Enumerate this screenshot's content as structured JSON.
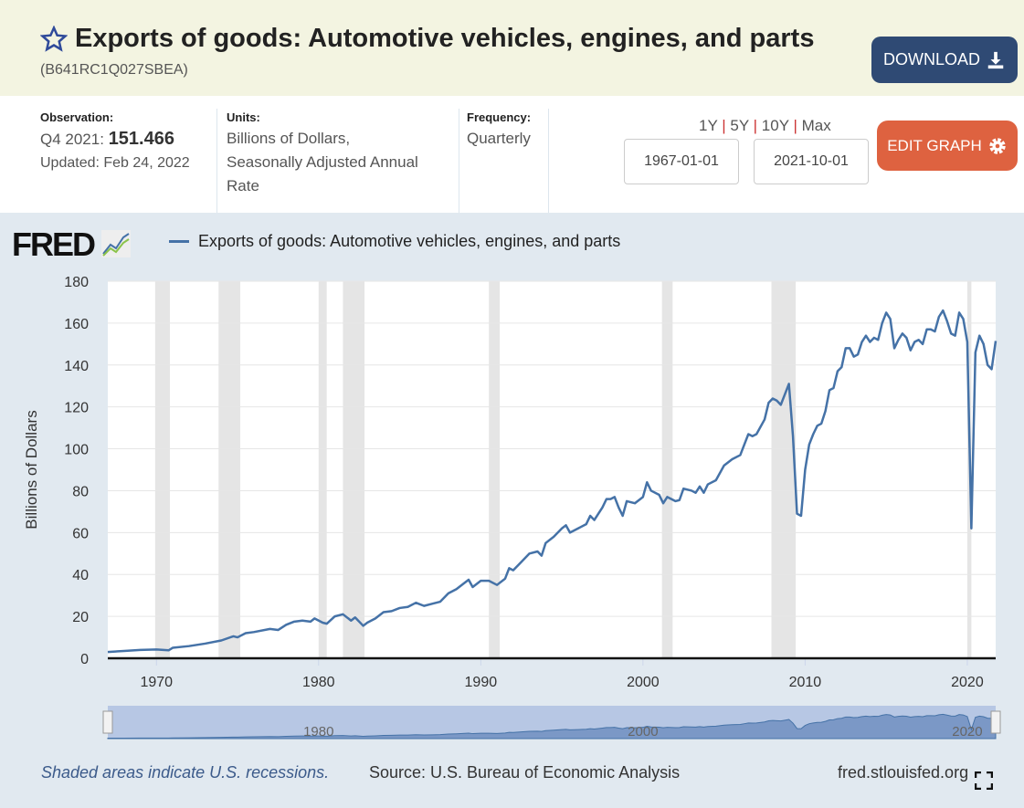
{
  "header": {
    "title": "Exports of goods: Automotive vehicles, engines, and parts",
    "series_id": "(B641RC1Q027SBEA)",
    "download_label": "DOWNLOAD",
    "star_icon": "star-outline-icon",
    "download_icon": "download-icon"
  },
  "info": {
    "observation_label": "Observation:",
    "observation_period": "Q4 2021:",
    "observation_value": "151.466",
    "updated": "Updated: Feb 24, 2022",
    "units_label": "Units:",
    "units_lines": [
      "Billions of Dollars,",
      "Seasonally Adjusted Annual",
      "Rate"
    ],
    "frequency_label": "Frequency:",
    "frequency": "Quarterly"
  },
  "range": {
    "options": [
      "1Y",
      "5Y",
      "10Y",
      "Max"
    ],
    "start": "1967-01-01",
    "end": "2021-10-01"
  },
  "edit_label": "EDIT GRAPH",
  "graph": {
    "logo": "FRED",
    "legend": "Exports of goods: Automotive vehicles, engines, and parts",
    "navigator_labels": [
      "1980",
      "2000",
      "2020"
    ],
    "footer_note": "Shaded areas indicate U.S. recessions.",
    "source": "Source: U.S. Bureau of Economic Analysis",
    "site": "fred.stlouisfed.org",
    "fullscreen_icon": "fullscreen-icon"
  },
  "colors": {
    "series": "#4572a7",
    "recession": "#e5e5e5",
    "download": "#2f4a74",
    "edit": "#de6240"
  },
  "chart_data": {
    "type": "line",
    "ylabel": "Billions of Dollars",
    "ylim": [
      0,
      180
    ],
    "yticks": [
      0,
      20,
      40,
      60,
      80,
      100,
      120,
      140,
      160,
      180
    ],
    "xlim": [
      1967,
      2021.75
    ],
    "xticks": [
      1970,
      1980,
      1990,
      2000,
      2010,
      2020
    ],
    "grid": true,
    "recessions": [
      [
        1969.92,
        1970.83
      ],
      [
        1973.83,
        1975.17
      ],
      [
        1980.0,
        1980.5
      ],
      [
        1981.5,
        1982.83
      ],
      [
        1990.5,
        1991.17
      ],
      [
        2001.17,
        2001.83
      ],
      [
        2007.92,
        2009.42
      ],
      [
        2020.0,
        2020.25
      ]
    ],
    "series": [
      {
        "name": "Exports of goods: Automotive vehicles, engines, and parts",
        "points": [
          [
            1967,
            3
          ],
          [
            1968,
            3.5
          ],
          [
            1969,
            4
          ],
          [
            1970,
            4.2
          ],
          [
            1970.75,
            3.8
          ],
          [
            1971,
            5
          ],
          [
            1972,
            5.8
          ],
          [
            1973,
            7
          ],
          [
            1974,
            8.5
          ],
          [
            1974.75,
            10.5
          ],
          [
            1975,
            10
          ],
          [
            1975.5,
            12
          ],
          [
            1976,
            12.5
          ],
          [
            1977,
            14
          ],
          [
            1977.5,
            13.5
          ],
          [
            1978,
            16
          ],
          [
            1978.5,
            17.5
          ],
          [
            1979,
            18
          ],
          [
            1979.5,
            17.5
          ],
          [
            1979.75,
            19
          ],
          [
            1980.25,
            17
          ],
          [
            1980.5,
            16.5
          ],
          [
            1981,
            20
          ],
          [
            1981.5,
            21
          ],
          [
            1982,
            18
          ],
          [
            1982.25,
            19.5
          ],
          [
            1982.75,
            15.5
          ],
          [
            1983,
            17
          ],
          [
            1983.5,
            19
          ],
          [
            1984,
            22
          ],
          [
            1984.5,
            22.5
          ],
          [
            1985,
            24
          ],
          [
            1985.5,
            24.5
          ],
          [
            1986,
            26.5
          ],
          [
            1986.5,
            25
          ],
          [
            1987,
            26
          ],
          [
            1987.5,
            27
          ],
          [
            1988,
            31
          ],
          [
            1988.5,
            33
          ],
          [
            1989,
            36
          ],
          [
            1989.25,
            37.5
          ],
          [
            1989.5,
            34
          ],
          [
            1990,
            37
          ],
          [
            1990.5,
            37
          ],
          [
            1991,
            35
          ],
          [
            1991.5,
            38
          ],
          [
            1991.75,
            43
          ],
          [
            1992,
            42
          ],
          [
            1992.5,
            46
          ],
          [
            1993,
            50
          ],
          [
            1993.5,
            51
          ],
          [
            1993.75,
            49
          ],
          [
            1994,
            55
          ],
          [
            1994.5,
            58
          ],
          [
            1995,
            62
          ],
          [
            1995.25,
            63.5
          ],
          [
            1995.5,
            60
          ],
          [
            1996,
            62
          ],
          [
            1996.5,
            64
          ],
          [
            1996.75,
            68
          ],
          [
            1997,
            66
          ],
          [
            1997.5,
            72
          ],
          [
            1997.75,
            76
          ],
          [
            1998,
            76
          ],
          [
            1998.25,
            77
          ],
          [
            1998.5,
            72
          ],
          [
            1998.75,
            68
          ],
          [
            1999,
            75
          ],
          [
            1999.5,
            74
          ],
          [
            2000,
            77
          ],
          [
            2000.25,
            84
          ],
          [
            2000.5,
            80
          ],
          [
            2001,
            78
          ],
          [
            2001.25,
            74
          ],
          [
            2001.5,
            77
          ],
          [
            2002,
            75
          ],
          [
            2002.25,
            75.5
          ],
          [
            2002.5,
            81
          ],
          [
            2003,
            80
          ],
          [
            2003.25,
            79
          ],
          [
            2003.5,
            82
          ],
          [
            2003.75,
            79
          ],
          [
            2004,
            83
          ],
          [
            2004.5,
            85
          ],
          [
            2005,
            92
          ],
          [
            2005.5,
            95
          ],
          [
            2006,
            97
          ],
          [
            2006.25,
            102
          ],
          [
            2006.5,
            107
          ],
          [
            2006.75,
            106
          ],
          [
            2007,
            107
          ],
          [
            2007.5,
            114
          ],
          [
            2007.75,
            122
          ],
          [
            2008,
            124
          ],
          [
            2008.25,
            123
          ],
          [
            2008.5,
            121
          ],
          [
            2008.75,
            126
          ],
          [
            2009,
            131
          ],
          [
            2009.25,
            106
          ],
          [
            2009.5,
            69
          ],
          [
            2009.75,
            68
          ],
          [
            2010,
            90
          ],
          [
            2010.25,
            102
          ],
          [
            2010.5,
            107
          ],
          [
            2010.75,
            111
          ],
          [
            2011,
            112
          ],
          [
            2011.25,
            118
          ],
          [
            2011.5,
            128
          ],
          [
            2011.75,
            129
          ],
          [
            2012,
            137
          ],
          [
            2012.25,
            139
          ],
          [
            2012.5,
            148
          ],
          [
            2012.75,
            148
          ],
          [
            2013,
            144
          ],
          [
            2013.25,
            145
          ],
          [
            2013.5,
            151
          ],
          [
            2013.75,
            154
          ],
          [
            2014,
            151
          ],
          [
            2014.25,
            153
          ],
          [
            2014.5,
            152
          ],
          [
            2014.75,
            160
          ],
          [
            2015,
            165
          ],
          [
            2015.25,
            162
          ],
          [
            2015.5,
            148
          ],
          [
            2015.75,
            152
          ],
          [
            2016,
            155
          ],
          [
            2016.25,
            153
          ],
          [
            2016.5,
            147
          ],
          [
            2016.75,
            151
          ],
          [
            2017,
            152
          ],
          [
            2017.25,
            150
          ],
          [
            2017.5,
            157
          ],
          [
            2017.75,
            157
          ],
          [
            2018,
            156
          ],
          [
            2018.25,
            163
          ],
          [
            2018.5,
            166
          ],
          [
            2018.75,
            161
          ],
          [
            2019,
            155
          ],
          [
            2019.25,
            154
          ],
          [
            2019.5,
            165
          ],
          [
            2019.75,
            162
          ],
          [
            2020,
            151
          ],
          [
            2020.25,
            62
          ],
          [
            2020.5,
            146
          ],
          [
            2020.75,
            154
          ],
          [
            2021,
            150
          ],
          [
            2021.25,
            140
          ],
          [
            2021.5,
            138
          ],
          [
            2021.75,
            151.466
          ]
        ]
      }
    ]
  }
}
